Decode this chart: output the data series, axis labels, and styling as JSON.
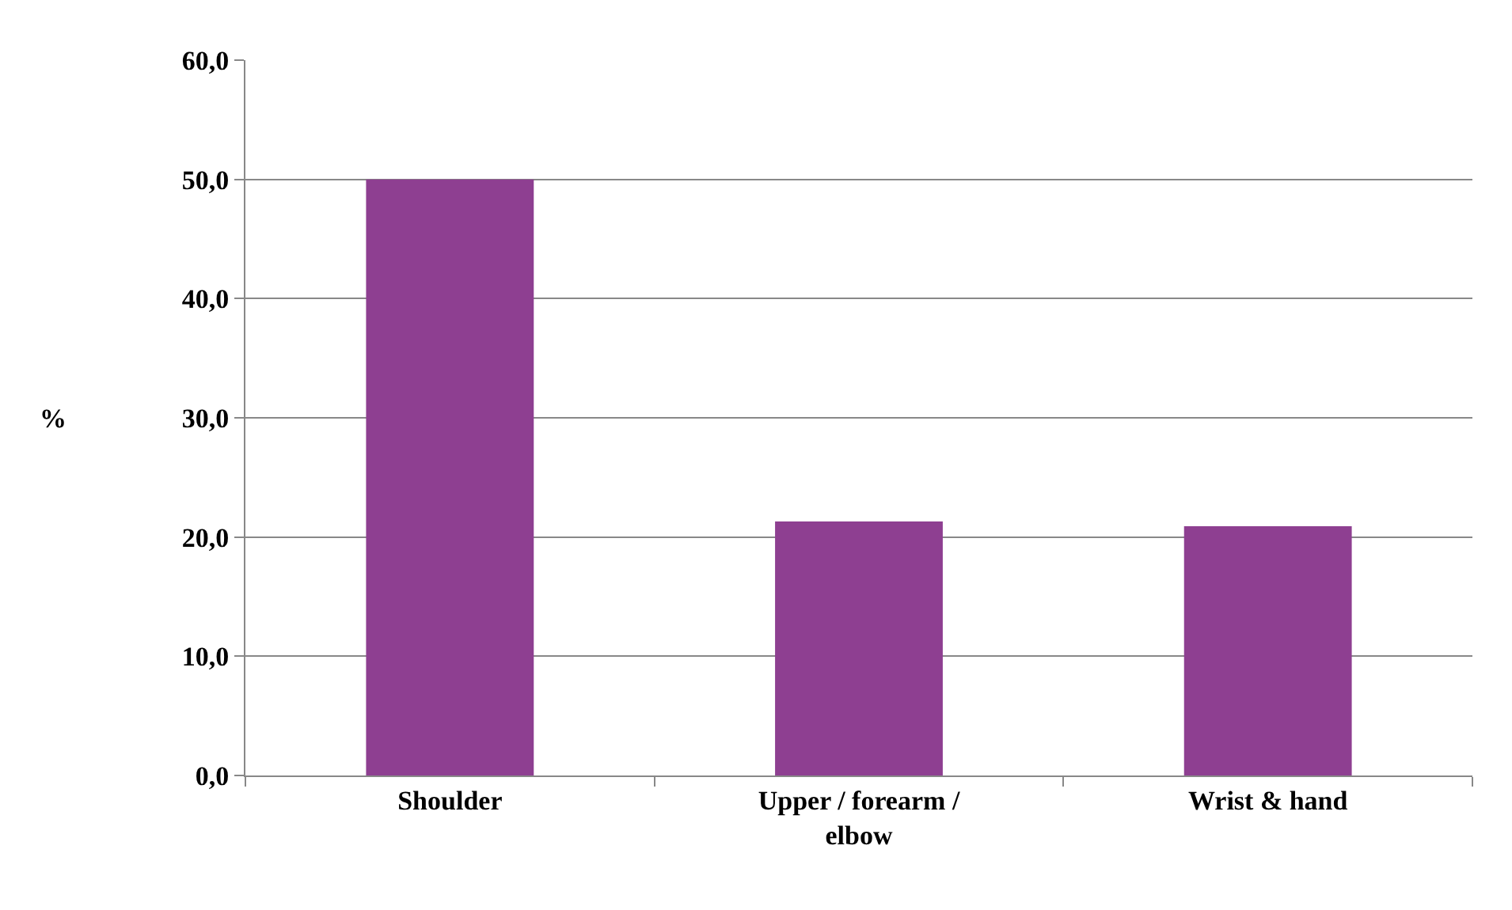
{
  "chart_data": {
    "type": "bar",
    "ylabel": "%",
    "categories": [
      "Shoulder",
      "Upper / forearm / elbow",
      "Wrist & hand"
    ],
    "values": [
      50.0,
      21.3,
      20.9
    ],
    "color": "#8e3f91",
    "ylim": [
      0,
      60
    ],
    "yticks": [
      {
        "value": 0,
        "label": "0,0"
      },
      {
        "value": 10,
        "label": "10,0"
      },
      {
        "value": 20,
        "label": "20,0"
      },
      {
        "value": 30,
        "label": "30,0"
      },
      {
        "value": 40,
        "label": "40,0"
      },
      {
        "value": 50,
        "label": "50,0"
      },
      {
        "value": 60,
        "label": "60,0"
      }
    ],
    "grid": "y"
  }
}
